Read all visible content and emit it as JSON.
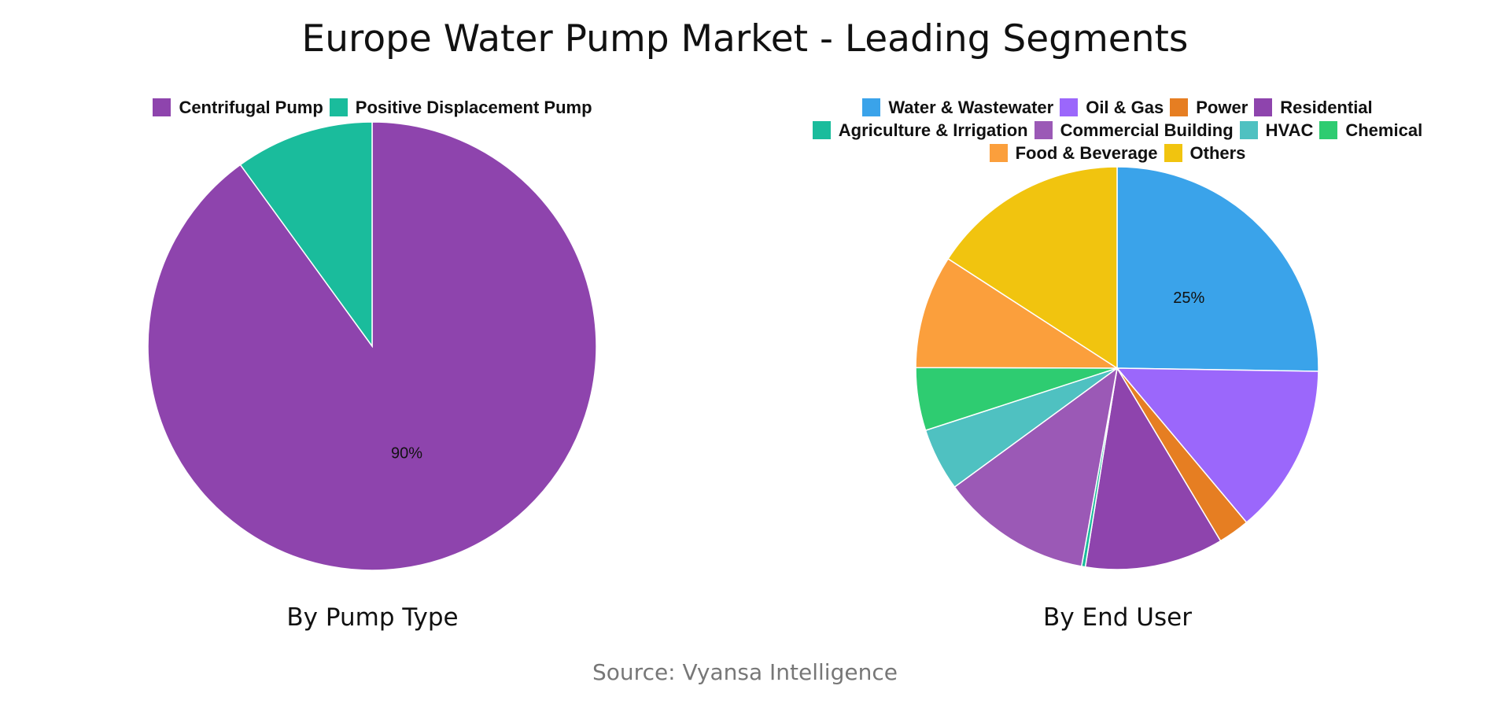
{
  "title": "Europe Water Pump Market - Leading Segments",
  "source": "Source: Vyansa Intelligence",
  "chart_data": [
    {
      "type": "pie",
      "title": "By Pump Type",
      "labels": [
        "Centrifugal Pump",
        "Positive Displacement Pump"
      ],
      "values": [
        90,
        10
      ],
      "colors": [
        "#8e44ad",
        "#1abc9c"
      ],
      "data_labels": [
        "90%",
        ""
      ],
      "legend_position": "top"
    },
    {
      "type": "pie",
      "title": "By End User",
      "labels": [
        "Water & Wastewater",
        "Oil & Gas",
        "Power",
        "Residential",
        "Agriculture & Irrigation",
        "Commercial Building",
        "HVAC",
        "Chemical",
        "Food & Beverage",
        "Others"
      ],
      "values": [
        25,
        13.5,
        2.5,
        11,
        0.3,
        12,
        5,
        5,
        9,
        15.7
      ],
      "colors": [
        "#3aa3ea",
        "#9b67fb",
        "#e67e22",
        "#8e44ad",
        "#1abc9c",
        "#9b59b6",
        "#4fc1c1",
        "#2ecc71",
        "#fb9f3c",
        "#f1c40f"
      ],
      "data_labels": [
        "25%",
        "",
        "",
        "",
        "",
        "",
        "",
        "",
        "",
        ""
      ],
      "legend_position": "top"
    }
  ]
}
